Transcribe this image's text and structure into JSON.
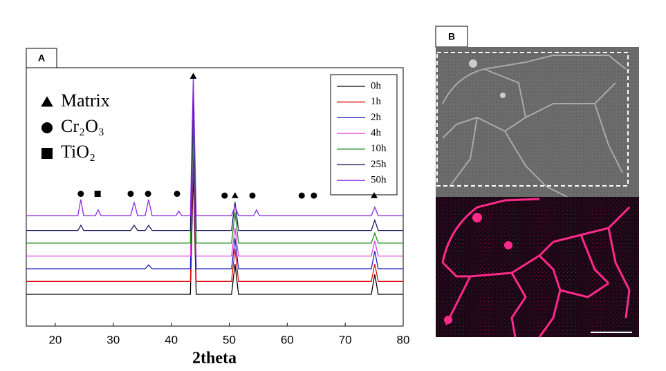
{
  "panel_labels": [
    "A",
    "B"
  ],
  "chart_data": {
    "type": "line",
    "x_label": "2theta",
    "x": [
      15,
      23.9,
      24.4,
      24.9,
      26.9,
      27.4,
      27.9,
      33.0,
      33.6,
      34.2,
      35.5,
      36.1,
      36.7,
      40.8,
      41.3,
      41.8,
      43.3,
      43.8,
      44.3,
      50.4,
      51.0,
      51.6,
      54.2,
      54.7,
      55.2,
      74.5,
      75.1,
      75.7,
      80
    ],
    "xlim": [
      15,
      80
    ],
    "xticks": [
      20,
      30,
      40,
      50,
      60,
      70,
      80
    ],
    "ylim": [
      0,
      100
    ],
    "legend": "top-right",
    "series": [
      {
        "name": "0h",
        "color": "#000000",
        "values": [
          12.3,
          12.3,
          12.3,
          12.3,
          12.3,
          12.3,
          12.3,
          12.3,
          12.3,
          12.3,
          12.3,
          12.3,
          12.3,
          12.3,
          12.3,
          12.3,
          12.3,
          60,
          12.3,
          12.3,
          24,
          12.3,
          12.3,
          12.3,
          12.3,
          12.3,
          20,
          12.3,
          12.3
        ]
      },
      {
        "name": "1h",
        "color": "#e01010",
        "values": [
          17.3,
          17.3,
          17.3,
          17.3,
          17.3,
          17.3,
          17.3,
          17.3,
          17.3,
          17.3,
          17.3,
          17.3,
          17.3,
          17.3,
          17.3,
          17.3,
          17.3,
          65,
          17.3,
          17.3,
          30,
          17.3,
          17.3,
          17.3,
          17.3,
          17.3,
          24,
          17.3,
          17.3
        ]
      },
      {
        "name": "2h",
        "color": "#1f1fbf",
        "values": [
          22.2,
          22.2,
          22.2,
          22.2,
          22.2,
          22.2,
          22.2,
          22.2,
          22.2,
          22.2,
          22.2,
          23.7,
          22.2,
          22.2,
          22.2,
          22.2,
          22.2,
          70,
          22.2,
          22.2,
          34,
          22.2,
          22.2,
          22.2,
          22.2,
          22.2,
          29,
          22.2,
          22.2
        ]
      },
      {
        "name": "4h",
        "color": "#e040e0",
        "values": [
          27.1,
          27.1,
          27.1,
          27.1,
          27.1,
          27.1,
          27.1,
          27.1,
          27.1,
          27.1,
          27.1,
          27.1,
          27.1,
          27.1,
          27.1,
          27.1,
          27.1,
          75,
          27.1,
          27.1,
          38,
          27.1,
          27.1,
          27.1,
          27.1,
          27.1,
          33,
          27.1,
          27.1
        ]
      },
      {
        "name": "10h",
        "color": "#1a8a1a",
        "values": [
          32.1,
          32.1,
          32.1,
          32.1,
          32.1,
          32.1,
          32.1,
          32.1,
          32.1,
          32.1,
          32.1,
          32.1,
          32.1,
          32.1,
          32.1,
          32.1,
          32.1,
          80,
          32.1,
          32.1,
          44,
          32.1,
          32.1,
          32.1,
          32.1,
          32.1,
          36,
          32.1,
          32.1
        ]
      },
      {
        "name": "25h",
        "color": "#1a1a60",
        "values": [
          37.0,
          37.0,
          39,
          37.0,
          37.0,
          37.0,
          37.0,
          37.0,
          39,
          37.0,
          37.0,
          39,
          37.0,
          37.0,
          37.0,
          37.0,
          37.0,
          90,
          37.0,
          37.0,
          48,
          37.0,
          37.0,
          37.0,
          37.0,
          37.0,
          41,
          37.0,
          37.0
        ]
      },
      {
        "name": "50h",
        "color": "#8a2be2",
        "values": [
          42.7,
          42.7,
          49,
          42.7,
          42.7,
          45,
          42.7,
          42.7,
          48,
          42.7,
          42.7,
          49,
          42.7,
          42.7,
          44.5,
          42.7,
          42.7,
          97,
          42.7,
          42.7,
          46.5,
          42.7,
          42.7,
          45,
          42.7,
          42.7,
          46,
          42.7,
          42.7
        ]
      }
    ],
    "symbol_legend": [
      {
        "symbol": "triangle",
        "label": "Matrix"
      },
      {
        "symbol": "circle",
        "label": "Cr₂O₃"
      },
      {
        "symbol": "square",
        "label": "TiO₂"
      }
    ],
    "markers": [
      {
        "symbol": "circle",
        "x": 24.4,
        "y": 51.2
      },
      {
        "symbol": "square",
        "x": 27.3,
        "y": 51.2
      },
      {
        "symbol": "circle",
        "x": 33.0,
        "y": 51.2
      },
      {
        "symbol": "circle",
        "x": 36.0,
        "y": 51.2
      },
      {
        "symbol": "circle",
        "x": 41.0,
        "y": 51.2
      },
      {
        "symbol": "circle",
        "x": 49.2,
        "y": 50.5
      },
      {
        "symbol": "triangle",
        "x": 51.0,
        "y": 50.5
      },
      {
        "symbol": "circle",
        "x": 54.0,
        "y": 50.5
      },
      {
        "symbol": "circle",
        "x": 62.5,
        "y": 50.5
      },
      {
        "symbol": "circle",
        "x": 64.6,
        "y": 50.5
      },
      {
        "symbol": "triangle",
        "x": 75.0,
        "y": 50.5
      },
      {
        "symbol": "triangle",
        "x": 43.8,
        "y": 96.7
      }
    ]
  }
}
